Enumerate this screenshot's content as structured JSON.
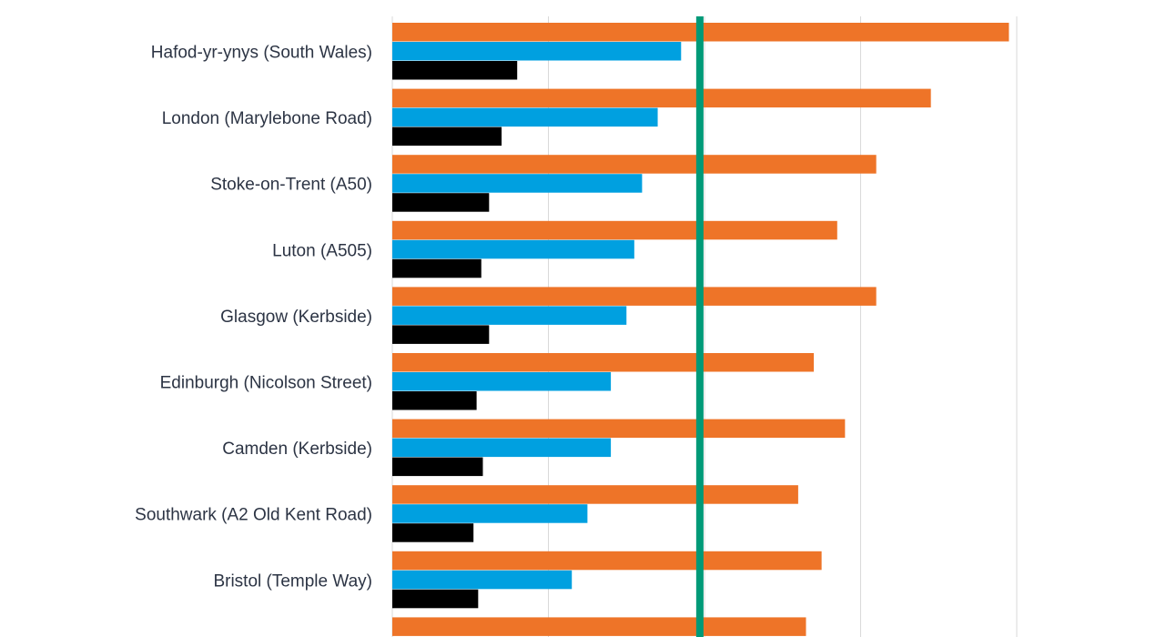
{
  "chart_data": {
    "type": "bar",
    "orientation": "horizontal",
    "title": "",
    "xlabel": "",
    "ylabel": "",
    "xlim": [
      0,
      40
    ],
    "grid": true,
    "legend": "none",
    "categories": [
      "Hafod-yr-ynys (South Wales)",
      "London (Marylebone Road)",
      "Stoke-on-Trent (A50)",
      "Luton (A505)",
      "Glasgow (Kerbside)",
      "Edinburgh (Nicolson Street)",
      "Camden (Kerbside)",
      "Southwark (A2 Old Kent Road)",
      "Bristol (Temple Way)",
      ""
    ],
    "series": [
      {
        "color": "#ee7428",
        "values": [
          39.5,
          34.5,
          31.0,
          28.5,
          31.0,
          27.0,
          29.0,
          26.0,
          27.5,
          26.5
        ]
      },
      {
        "color": "#00a0e0",
        "values": [
          18.5,
          17.0,
          16.0,
          15.5,
          15.0,
          14.0,
          14.0,
          12.5,
          11.5,
          null
        ]
      },
      {
        "color": "#000000",
        "values": [
          8.0,
          7.0,
          6.2,
          5.7,
          6.2,
          5.4,
          5.8,
          5.2,
          5.5,
          null
        ]
      }
    ],
    "reference_line": {
      "value": 19.7,
      "color": "#009a78"
    }
  }
}
